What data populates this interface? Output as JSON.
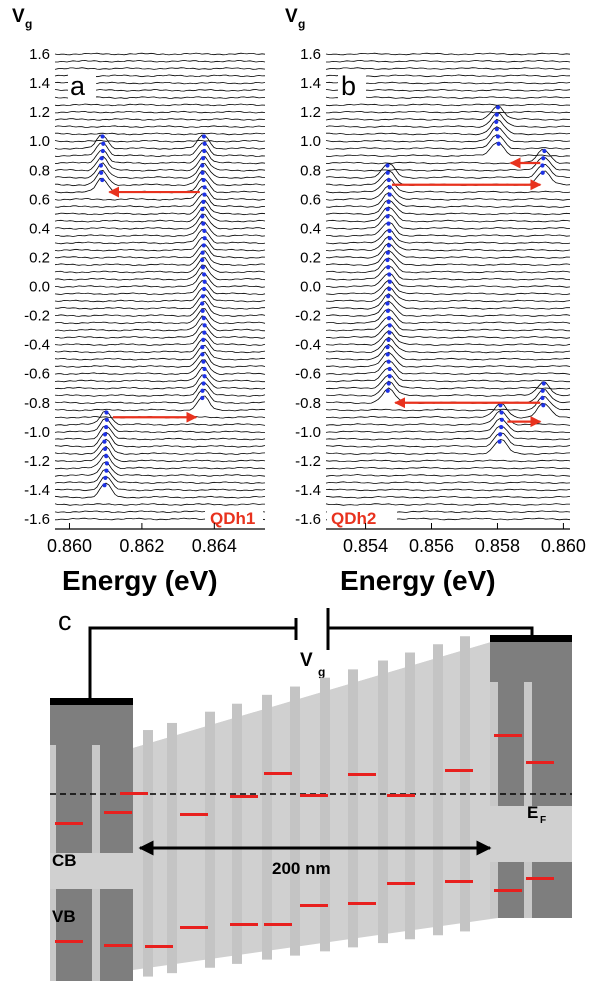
{
  "panel_a": {
    "letter": "a",
    "dot_label": "QDh1",
    "vg_label": "V",
    "vg_sub": "g",
    "xlabel": "Energy (eV)",
    "x_ticks": [
      "0.860",
      "0.862",
      "0.864"
    ],
    "y_ticks": [
      "1.6",
      "1.4",
      "1.2",
      "1.0",
      "0.8",
      "0.6",
      "0.4",
      "0.2",
      "0.0",
      "-0.2",
      "-0.4",
      "-0.6",
      "-0.8",
      "-1.0",
      "-1.2",
      "-1.4",
      "-1.6"
    ]
  },
  "panel_b": {
    "letter": "b",
    "dot_label": "QDh2",
    "vg_label": "V",
    "vg_sub": "g",
    "xlabel": "Energy (eV)",
    "x_ticks": [
      "0.854",
      "0.856",
      "0.858",
      "0.860"
    ],
    "y_ticks": [
      "1.6",
      "1.4",
      "1.2",
      "1.0",
      "0.8",
      "0.6",
      "0.4",
      "0.2",
      "0.0",
      "-0.2",
      "-0.4",
      "-0.6",
      "-0.8",
      "-1.0",
      "-1.2",
      "-1.4",
      "-1.6"
    ]
  },
  "panel_c": {
    "letter": "c",
    "vg_label": "V",
    "vg_sub": "g",
    "fermi_label": "E",
    "fermi_sub": "F",
    "cb_label": "CB",
    "vb_label": "VB",
    "scale_label": "200 nm"
  },
  "chart_data": [
    {
      "type": "line",
      "panel": "a",
      "description_of_axes": "waterfall of spectra vs gate voltage",
      "xlabel": "Energy (eV)",
      "ylabel": "V_g",
      "xlim": [
        0.8596,
        0.8654
      ],
      "ylim": [
        -1.6,
        1.6
      ],
      "vg_step": 0.05,
      "series": [
        {
          "peak_energy_eV": 0.8637,
          "vg_range": [
            -0.85,
            0.95
          ]
        },
        {
          "peak_energy_eV": 0.8609,
          "vg_range": [
            0.65,
            0.95
          ]
        },
        {
          "peak_energy_eV": 0.861,
          "vg_range": [
            -1.45,
            -0.95
          ]
        }
      ],
      "arrows": [
        {
          "from_eV": 0.8636,
          "to_eV": 0.8611,
          "vg": 0.65
        },
        {
          "from_eV": 0.8612,
          "to_eV": 0.8635,
          "vg": -0.9
        }
      ]
    },
    {
      "type": "line",
      "panel": "b",
      "xlabel": "Energy (eV)",
      "ylabel": "V_g",
      "xlim": [
        0.8528,
        0.8602
      ],
      "ylim": [
        -1.6,
        1.6
      ],
      "vg_step": 0.05,
      "series": [
        {
          "peak_energy_eV": 0.8547,
          "vg_range": [
            -0.8,
            0.75
          ]
        },
        {
          "peak_energy_eV": 0.8594,
          "vg_range": [
            0.7,
            0.85
          ]
        },
        {
          "peak_energy_eV": 0.858,
          "vg_range": [
            0.9,
            1.15
          ]
        },
        {
          "peak_energy_eV": 0.8594,
          "vg_range": [
            -0.9,
            -0.75
          ]
        },
        {
          "peak_energy_eV": 0.8581,
          "vg_range": [
            -1.15,
            -0.9
          ]
        }
      ],
      "arrows": [
        {
          "from_eV": 0.8548,
          "to_eV": 0.8593,
          "vg": 0.7
        },
        {
          "from_eV": 0.8593,
          "to_eV": 0.8584,
          "vg": 0.85
        },
        {
          "from_eV": 0.8593,
          "to_eV": 0.8549,
          "vg": -0.8
        },
        {
          "from_eV": 0.8583,
          "to_eV": 0.8593,
          "vg": -0.93
        }
      ]
    }
  ],
  "colors": {
    "arrow": "#e8321e",
    "dots": "#1e32e6",
    "level": "#e8201e",
    "band_light": "#cfcfcf",
    "band_dark": "#7d7d7d"
  }
}
